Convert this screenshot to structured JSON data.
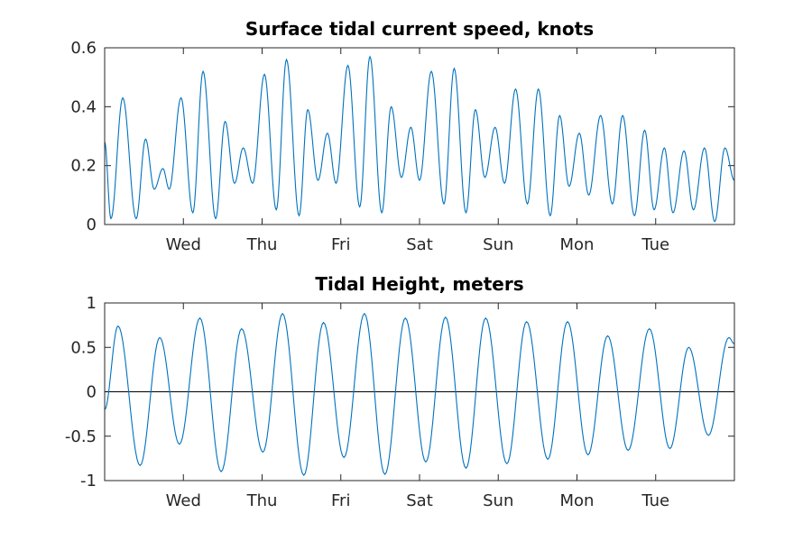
{
  "chart_data": [
    {
      "type": "line",
      "title": "Surface tidal current speed, knots",
      "xlabel": "",
      "ylabel": "",
      "xlim": [
        0,
        8
      ],
      "ylim": [
        0,
        0.6
      ],
      "x_ticks": [
        {
          "x": 1,
          "label": "Wed"
        },
        {
          "x": 2,
          "label": "Thu"
        },
        {
          "x": 3,
          "label": "Fri"
        },
        {
          "x": 4,
          "label": "Sat"
        },
        {
          "x": 5,
          "label": "Sun"
        },
        {
          "x": 6,
          "label": "Mon"
        },
        {
          "x": 7,
          "label": "Tue"
        }
      ],
      "y_ticks": [
        {
          "y": 0,
          "label": "0"
        },
        {
          "y": 0.2,
          "label": "0.2"
        },
        {
          "y": 0.4,
          "label": "0.4"
        },
        {
          "y": 0.6,
          "label": "0.6"
        }
      ],
      "grid": false,
      "series": [
        {
          "color": "#0072BD",
          "points": [
            [
              0.0,
              0.28
            ],
            [
              0.08,
              0.02
            ],
            [
              0.23,
              0.43
            ],
            [
              0.4,
              0.02
            ],
            [
              0.52,
              0.29
            ],
            [
              0.63,
              0.12
            ],
            [
              0.74,
              0.19
            ],
            [
              0.82,
              0.12
            ],
            [
              0.97,
              0.43
            ],
            [
              1.12,
              0.04
            ],
            [
              1.25,
              0.52
            ],
            [
              1.41,
              0.02
            ],
            [
              1.53,
              0.35
            ],
            [
              1.65,
              0.14
            ],
            [
              1.76,
              0.26
            ],
            [
              1.88,
              0.14
            ],
            [
              2.03,
              0.51
            ],
            [
              2.18,
              0.05
            ],
            [
              2.31,
              0.56
            ],
            [
              2.47,
              0.03
            ],
            [
              2.58,
              0.39
            ],
            [
              2.71,
              0.15
            ],
            [
              2.83,
              0.31
            ],
            [
              2.94,
              0.14
            ],
            [
              3.09,
              0.54
            ],
            [
              3.24,
              0.06
            ],
            [
              3.37,
              0.57
            ],
            [
              3.52,
              0.04
            ],
            [
              3.64,
              0.4
            ],
            [
              3.77,
              0.16
            ],
            [
              3.89,
              0.33
            ],
            [
              4.0,
              0.15
            ],
            [
              4.15,
              0.52
            ],
            [
              4.31,
              0.07
            ],
            [
              4.44,
              0.53
            ],
            [
              4.59,
              0.04
            ],
            [
              4.71,
              0.39
            ],
            [
              4.83,
              0.16
            ],
            [
              4.96,
              0.33
            ],
            [
              5.08,
              0.14
            ],
            [
              5.22,
              0.46
            ],
            [
              5.37,
              0.07
            ],
            [
              5.51,
              0.46
            ],
            [
              5.66,
              0.03
            ],
            [
              5.78,
              0.37
            ],
            [
              5.9,
              0.13
            ],
            [
              6.03,
              0.31
            ],
            [
              6.15,
              0.1
            ],
            [
              6.3,
              0.37
            ],
            [
              6.45,
              0.07
            ],
            [
              6.58,
              0.37
            ],
            [
              6.73,
              0.03
            ],
            [
              6.86,
              0.32
            ],
            [
              6.98,
              0.05
            ],
            [
              7.11,
              0.26
            ],
            [
              7.22,
              0.04
            ],
            [
              7.36,
              0.25
            ],
            [
              7.48,
              0.05
            ],
            [
              7.62,
              0.26
            ],
            [
              7.75,
              0.01
            ],
            [
              7.88,
              0.26
            ],
            [
              8.0,
              0.15
            ]
          ]
        }
      ]
    },
    {
      "type": "line",
      "title": "Tidal Height, meters",
      "xlabel": "",
      "ylabel": "",
      "xlim": [
        0,
        8
      ],
      "ylim": [
        -1,
        1
      ],
      "x_ticks": [
        {
          "x": 1,
          "label": "Wed"
        },
        {
          "x": 2,
          "label": "Thu"
        },
        {
          "x": 3,
          "label": "Fri"
        },
        {
          "x": 4,
          "label": "Sat"
        },
        {
          "x": 5,
          "label": "Sun"
        },
        {
          "x": 6,
          "label": "Mon"
        },
        {
          "x": 7,
          "label": "Tue"
        }
      ],
      "y_ticks": [
        {
          "y": -1,
          "label": "-1"
        },
        {
          "y": -0.5,
          "label": "-0.5"
        },
        {
          "y": 0,
          "label": "0"
        },
        {
          "y": 0.5,
          "label": "0.5"
        },
        {
          "y": 1,
          "label": "1"
        }
      ],
      "zero_line": true,
      "grid": false,
      "series": [
        {
          "color": "#0072BD",
          "points": [
            [
              0.0,
              -0.2
            ],
            [
              0.17,
              0.74
            ],
            [
              0.45,
              -0.83
            ],
            [
              0.7,
              0.61
            ],
            [
              0.95,
              -0.59
            ],
            [
              1.21,
              0.83
            ],
            [
              1.48,
              -0.9
            ],
            [
              1.74,
              0.71
            ],
            [
              2.01,
              -0.68
            ],
            [
              2.26,
              0.88
            ],
            [
              2.53,
              -0.94
            ],
            [
              2.78,
              0.78
            ],
            [
              3.04,
              -0.74
            ],
            [
              3.3,
              0.88
            ],
            [
              3.56,
              -0.93
            ],
            [
              3.82,
              0.83
            ],
            [
              4.08,
              -0.79
            ],
            [
              4.33,
              0.84
            ],
            [
              4.59,
              -0.86
            ],
            [
              4.84,
              0.83
            ],
            [
              5.11,
              -0.81
            ],
            [
              5.36,
              0.79
            ],
            [
              5.63,
              -0.76
            ],
            [
              5.88,
              0.79
            ],
            [
              6.14,
              -0.71
            ],
            [
              6.39,
              0.63
            ],
            [
              6.65,
              -0.66
            ],
            [
              6.92,
              0.71
            ],
            [
              7.18,
              -0.64
            ],
            [
              7.42,
              0.5
            ],
            [
              7.67,
              -0.49
            ],
            [
              7.93,
              0.61
            ],
            [
              8.0,
              0.54
            ]
          ]
        }
      ]
    }
  ]
}
